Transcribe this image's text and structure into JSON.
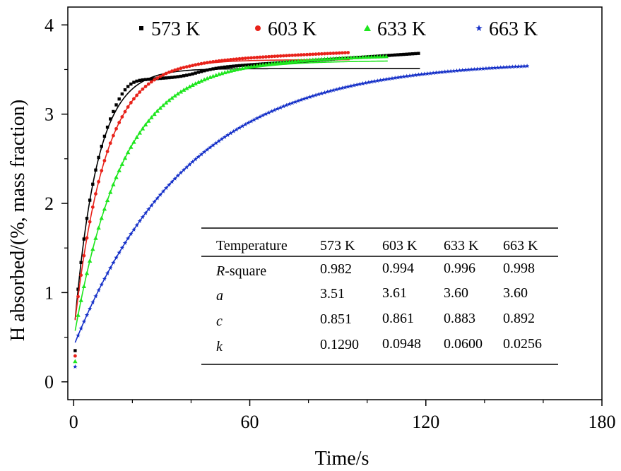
{
  "chart_data": {
    "type": "scatter",
    "xlabel": "Time/s",
    "ylabel": "H absorbed/(%, mass fraction)",
    "xlim": [
      -2,
      180
    ],
    "ylim": [
      -0.2,
      4.2
    ],
    "xticks": [
      0,
      60,
      120,
      180
    ],
    "yticks": [
      0,
      1,
      2,
      3,
      4
    ],
    "legend_position": "top",
    "series": [
      {
        "name": "573 K",
        "color": "#000000",
        "marker": "square",
        "t_end": 118,
        "fit": {
          "a": 3.51,
          "b": 3.0,
          "k": 0.129
        },
        "tail_slope": 0.0022
      },
      {
        "name": "603 K",
        "color": "#e8221a",
        "marker": "circle",
        "t_end": 94,
        "fit": {
          "a": 3.61,
          "b": 3.06,
          "k": 0.0948
        },
        "tail_slope": 0.0015
      },
      {
        "name": "633 K",
        "color": "#1ee61e",
        "marker": "triangle",
        "t_end": 107,
        "fit": {
          "a": 3.6,
          "b": 3.12,
          "k": 0.06
        },
        "tail_slope": 0.0008
      },
      {
        "name": "663 K",
        "color": "#1530c8",
        "marker": "star",
        "t_end": 155,
        "fit": {
          "a": 3.6,
          "b": 3.2,
          "k": 0.0256
        },
        "tail_slope": 0.0
      }
    ],
    "table": {
      "header": [
        "Temperature",
        "573 K",
        "603 K",
        "633 K",
        "663 K"
      ],
      "rows": [
        {
          "label_italic": "R",
          "label_rest": "-square",
          "values": [
            "0.982",
            "0.994",
            "0.996",
            "0.998"
          ]
        },
        {
          "label_italic": "a",
          "label_rest": "",
          "values": [
            "3.51",
            "3.61",
            "3.60",
            "3.60"
          ]
        },
        {
          "label_italic": "c",
          "label_rest": "",
          "values": [
            "0.851",
            "0.861",
            "0.883",
            "0.892"
          ]
        },
        {
          "label_italic": "k",
          "label_rest": "",
          "values": [
            "0.1290",
            "0.0948",
            "0.0600",
            "0.0256"
          ]
        }
      ]
    }
  }
}
